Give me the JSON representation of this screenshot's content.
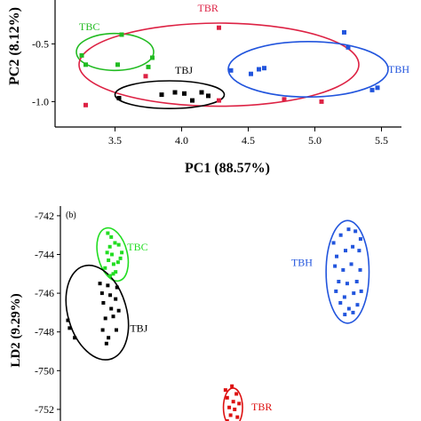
{
  "chart_data": [
    {
      "type": "scatter",
      "xlabel": "PC1 (88.57%)",
      "ylabel": "PC2 (8.12%)",
      "xlim": [
        3.05,
        5.65
      ],
      "ylim": [
        -1.22,
        -0.12
      ],
      "xticks": [
        3.5,
        4.0,
        4.5,
        5.0,
        5.5
      ],
      "xtick_labels": [
        "3.5",
        "4.0",
        "4.5",
        "5.0",
        "5.5"
      ],
      "yticks": [
        -0.5,
        -1.0
      ],
      "ytick_labels": [
        "-0.5",
        "-1.0"
      ],
      "series": [
        {
          "name": "TBC",
          "color": "#22bb22",
          "points": [
            [
              3.25,
              -0.6
            ],
            [
              3.28,
              -0.68
            ],
            [
              3.52,
              -0.68
            ],
            [
              3.55,
              -0.42
            ],
            [
              3.78,
              -0.62
            ],
            [
              3.75,
              -0.7
            ]
          ],
          "ellipse": {
            "cx": 3.5,
            "cy": -0.57,
            "rx": 0.29,
            "ry": 0.16
          },
          "label": {
            "text": "TBC",
            "x": 3.23,
            "y": -0.38
          }
        },
        {
          "name": "TBR",
          "color": "#dd2244",
          "points": [
            [
              3.28,
              -1.03
            ],
            [
              3.73,
              -0.78
            ],
            [
              4.28,
              -0.36
            ],
            [
              4.28,
              -0.99
            ],
            [
              4.77,
              -0.98
            ],
            [
              5.05,
              -1.0
            ]
          ],
          "ellipse": {
            "cx": 4.28,
            "cy": -0.68,
            "rx": 1.05,
            "ry": 0.36
          },
          "label": {
            "text": "TBR",
            "x": 4.12,
            "y": -0.22
          }
        },
        {
          "name": "TBJ",
          "color": "#000000",
          "points": [
            [
              3.53,
              -0.97
            ],
            [
              3.85,
              -0.94
            ],
            [
              3.95,
              -0.92
            ],
            [
              4.02,
              -0.93
            ],
            [
              4.08,
              -0.99
            ],
            [
              4.15,
              -0.92
            ],
            [
              4.2,
              -0.95
            ]
          ],
          "ellipse": {
            "cx": 3.91,
            "cy": -0.94,
            "rx": 0.41,
            "ry": 0.12
          },
          "label": {
            "text": "TBJ",
            "x": 3.95,
            "y": -0.76
          }
        },
        {
          "name": "TBH",
          "color": "#2255dd",
          "points": [
            [
              4.37,
              -0.73
            ],
            [
              4.52,
              -0.76
            ],
            [
              4.58,
              -0.72
            ],
            [
              4.62,
              -0.71
            ],
            [
              5.22,
              -0.4
            ],
            [
              5.25,
              -0.53
            ],
            [
              5.43,
              -0.9
            ],
            [
              5.47,
              -0.88
            ]
          ],
          "ellipse": {
            "cx": 4.95,
            "cy": -0.72,
            "rx": 0.6,
            "ry": 0.24
          },
          "label": {
            "text": "TBH",
            "x": 5.55,
            "y": -0.75
          }
        }
      ]
    },
    {
      "type": "scatter",
      "tag": "(b)",
      "ylabel": "LD2 (9.29%)",
      "xlim": [
        0,
        100
      ],
      "ylim": [
        -752.6,
        -741.5
      ],
      "yticks": [
        -742,
        -744,
        -746,
        -748,
        -750,
        -752
      ],
      "ytick_labels": [
        "-742",
        "-744",
        "-746",
        "-748",
        "-750",
        "-752"
      ],
      "series": [
        {
          "name": "TBC",
          "color": "#22dd22",
          "points": [
            [
              13.9,
              -742.9
            ],
            [
              14.9,
              -743.1
            ],
            [
              16.0,
              -743.4
            ],
            [
              14.5,
              -743.6
            ],
            [
              17.1,
              -743.5
            ],
            [
              13.7,
              -743.9
            ],
            [
              18.0,
              -743.9
            ],
            [
              15.1,
              -744.0
            ],
            [
              17.6,
              -744.2
            ],
            [
              14.1,
              -744.3
            ],
            [
              16.9,
              -744.4
            ],
            [
              15.6,
              -744.5
            ],
            [
              13.1,
              -744.7
            ],
            [
              16.2,
              -744.9
            ],
            [
              14.6,
              -745.1
            ],
            [
              15.5,
              -745.0
            ]
          ],
          "ellipse": {
            "cx": 15.3,
            "cy": -744.0,
            "rx": 4.3,
            "ry": 1.4,
            "angle": -14
          },
          "label": {
            "text": "TBC",
            "x": 19.6,
            "y": -743.8
          }
        },
        {
          "name": "TBJ",
          "color": "#000000",
          "points": [
            [
              11.6,
              -745.5
            ],
            [
              13.9,
              -745.6
            ],
            [
              16.6,
              -745.7
            ],
            [
              12.2,
              -746.0
            ],
            [
              14.6,
              -746.1
            ],
            [
              12.6,
              -746.5
            ],
            [
              16.2,
              -746.3
            ],
            [
              14.9,
              -746.8
            ],
            [
              17.1,
              -746.9
            ],
            [
              2.2,
              -747.4
            ],
            [
              13.2,
              -747.3
            ],
            [
              15.5,
              -747.2
            ],
            [
              2.7,
              -747.8
            ],
            [
              12.4,
              -747.9
            ],
            [
              16.4,
              -747.9
            ],
            [
              4.2,
              -748.3
            ],
            [
              14.1,
              -748.3
            ],
            [
              13.5,
              -748.6
            ]
          ],
          "ellipse": {
            "cx": 10.8,
            "cy": -747.0,
            "rx": 8.6,
            "ry": 2.5,
            "angle": -16
          },
          "label": {
            "text": "TBJ",
            "x": 20.4,
            "y": -748.0
          }
        },
        {
          "name": "TBH",
          "color": "#2255dd",
          "points": [
            [
              80.1,
              -743.4
            ],
            [
              82.2,
              -743.0
            ],
            [
              84.5,
              -742.7
            ],
            [
              86.5,
              -742.8
            ],
            [
              88.0,
              -743.2
            ],
            [
              81.0,
              -744.1
            ],
            [
              83.6,
              -743.8
            ],
            [
              85.7,
              -743.6
            ],
            [
              87.6,
              -743.8
            ],
            [
              80.5,
              -744.6
            ],
            [
              82.9,
              -744.8
            ],
            [
              85.3,
              -744.5
            ],
            [
              87.9,
              -744.8
            ],
            [
              81.6,
              -745.4
            ],
            [
              84.1,
              -745.5
            ],
            [
              86.9,
              -745.4
            ],
            [
              80.8,
              -745.9
            ],
            [
              83.3,
              -746.2
            ],
            [
              86.0,
              -746.0
            ],
            [
              88.2,
              -745.9
            ],
            [
              82.1,
              -746.5
            ],
            [
              84.6,
              -746.8
            ],
            [
              87.1,
              -746.6
            ],
            [
              83.4,
              -747.1
            ],
            [
              85.8,
              -747.0
            ]
          ],
          "ellipse": {
            "cx": 84.2,
            "cy": -744.9,
            "rx": 6.3,
            "ry": 2.65
          },
          "label": {
            "text": "TBH",
            "x": 67.7,
            "y": -744.6
          }
        },
        {
          "name": "TBR",
          "color": "#dd1111",
          "points": [
            [
              48.4,
              -751.0
            ],
            [
              50.3,
              -750.8
            ],
            [
              51.6,
              -751.2
            ],
            [
              48.9,
              -751.4
            ],
            [
              50.7,
              -751.6
            ],
            [
              52.4,
              -751.7
            ],
            [
              49.5,
              -751.9
            ],
            [
              51.1,
              -752.0
            ],
            [
              49.9,
              -752.3
            ],
            [
              51.9,
              -752.4
            ],
            [
              48.9,
              -752.6
            ]
          ],
          "ellipse": {
            "cx": 50.6,
            "cy": -751.9,
            "rx": 2.8,
            "ry": 1.0
          },
          "label": {
            "text": "TBR",
            "x": 56.0,
            "y": -752.05
          }
        }
      ]
    }
  ]
}
